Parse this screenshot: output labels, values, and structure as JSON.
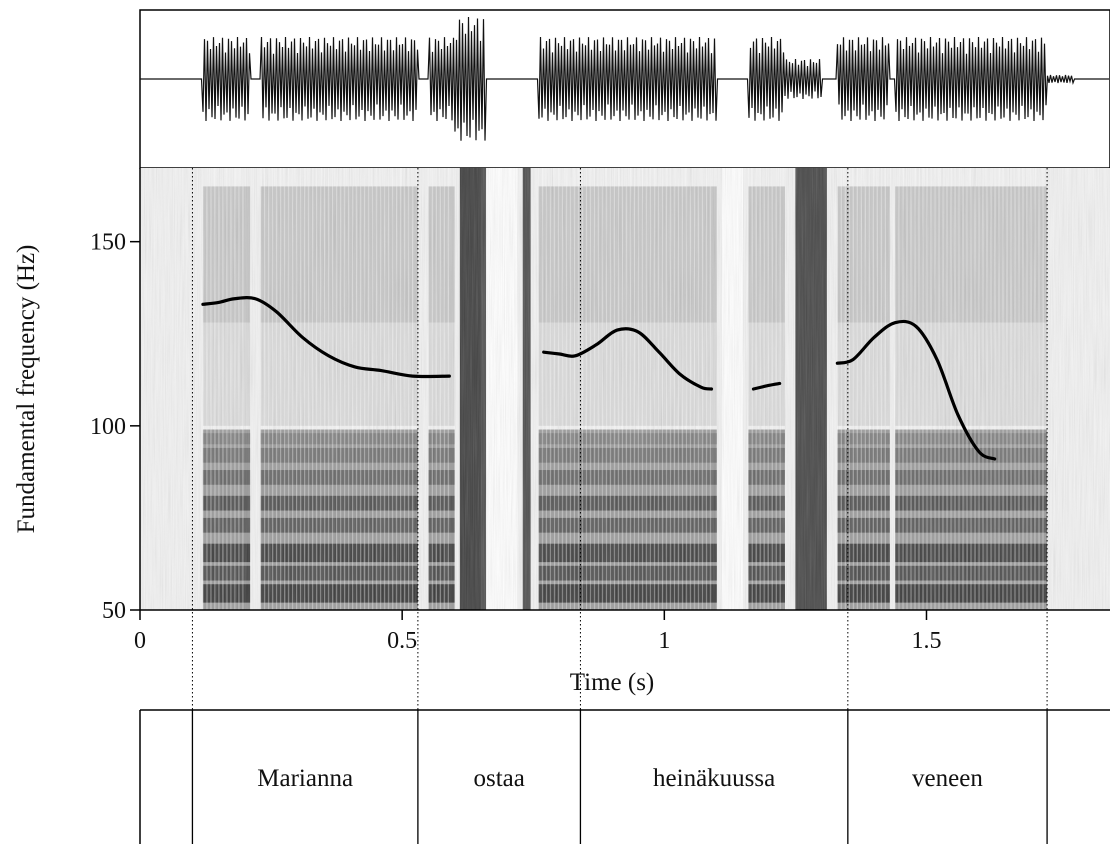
{
  "chart_data": {
    "type": "line",
    "title": "",
    "xlabel": "Time (s)",
    "ylabel": "Fundamental frequency (Hz)",
    "xlim": [
      0,
      1.85
    ],
    "ylim": [
      50,
      170
    ],
    "x_ticks": [
      {
        "value": 0,
        "label": "0"
      },
      {
        "value": 0.5,
        "label": "0.5"
      },
      {
        "value": 1,
        "label": "1"
      },
      {
        "value": 1.5,
        "label": "1.5"
      }
    ],
    "y_ticks": [
      {
        "value": 50,
        "label": "50"
      },
      {
        "value": 100,
        "label": "100"
      },
      {
        "value": 150,
        "label": "150"
      }
    ],
    "grid": false,
    "legend": "none",
    "series": [
      {
        "segments": [
          {
            "x": [
              0.12,
              0.15,
              0.18,
              0.22,
              0.26,
              0.31,
              0.36,
              0.41,
              0.46,
              0.52,
              0.59
            ],
            "y": [
              133,
              133.5,
              134.5,
              134.5,
              131,
              124,
              119,
              116,
              115,
              113.5,
              113.5
            ]
          },
          {
            "x": [
              0.77,
              0.8,
              0.83,
              0.87,
              0.91,
              0.95,
              0.99,
              1.03,
              1.07,
              1.09
            ],
            "y": [
              120,
              119.5,
              119,
              122,
              126,
              125.5,
              120,
              114,
              110.5,
              110
            ]
          },
          {
            "x": [
              1.17,
              1.2,
              1.22
            ],
            "y": [
              110,
              111,
              111.5
            ]
          },
          {
            "x": [
              1.33,
              1.36,
              1.4,
              1.44,
              1.48,
              1.52,
              1.56,
              1.6,
              1.63
            ],
            "y": [
              117,
              118,
              124,
              128,
              127,
              118,
              103,
              93,
              91
            ]
          }
        ]
      }
    ],
    "segment_boundaries": [
      0.1,
      0.53,
      0.84,
      1.35,
      1.73
    ],
    "words": [
      {
        "label": "Marianna",
        "start": 0.1,
        "end": 0.53
      },
      {
        "label": "ostaa",
        "start": 0.53,
        "end": 0.84
      },
      {
        "label": "heinäkuussa",
        "start": 0.84,
        "end": 1.35
      },
      {
        "label": "veneen",
        "start": 1.35,
        "end": 1.73
      }
    ]
  }
}
